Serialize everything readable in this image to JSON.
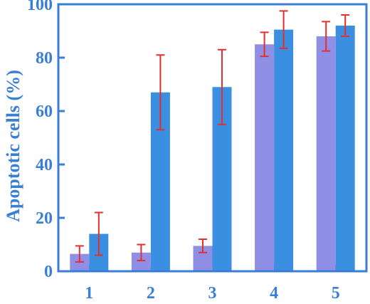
{
  "chart_data": {
    "type": "bar",
    "title": "",
    "xlabel": "",
    "ylabel": "Apoptotic cells (%)",
    "categories": [
      "1",
      "2",
      "3",
      "4",
      "5"
    ],
    "ylim": [
      0,
      100
    ],
    "yticks": [
      0,
      20,
      40,
      60,
      80,
      100
    ],
    "grid": false,
    "series": [
      {
        "color": "#8f8fe6",
        "values": [
          6.5,
          7,
          9.5,
          85,
          88
        ],
        "errors": [
          3,
          3,
          2.5,
          4.5,
          5.5
        ]
      },
      {
        "color": "#3a8fe0",
        "values": [
          14,
          67,
          69,
          90.5,
          92
        ],
        "errors": [
          8,
          14,
          14,
          7,
          4
        ]
      }
    ],
    "colors": {
      "axis": "#3a7fd5",
      "error_bar": "#e03030",
      "label": "#3a7fd5"
    }
  }
}
